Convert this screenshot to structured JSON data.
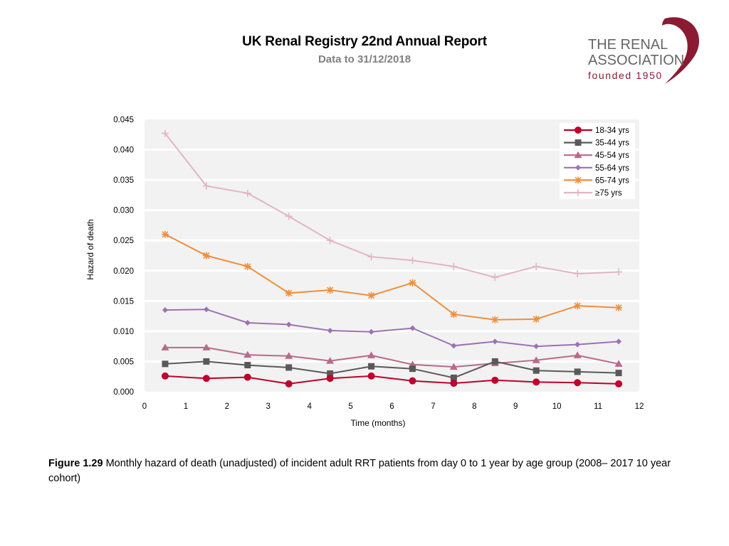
{
  "header": {
    "title": "UK Renal Registry 22nd Annual Report",
    "subtitle": "Data to 31/12/2018"
  },
  "logo": {
    "line1": "THE RENAL",
    "line2": "ASSOCIATION",
    "line3": "founded 1950",
    "brand_color": "#8b1a33"
  },
  "caption": {
    "figure_label": "Figure 1.29",
    "text": " Monthly hazard of death (unadjusted) of incident adult RRT patients from day 0 to 1 year by age group (2008– 2017 10 year cohort)"
  },
  "chart_data": {
    "type": "line",
    "title": "",
    "xlabel": "Time (months)",
    "ylabel": "Hazard of death",
    "xlim": [
      0,
      12
    ],
    "ylim": [
      0,
      0.045
    ],
    "xticks": [
      "0",
      "1",
      "2",
      "3",
      "4",
      "5",
      "6",
      "7",
      "8",
      "9",
      "10",
      "11",
      "12"
    ],
    "yticks": [
      "0.000",
      "0.005",
      "0.010",
      "0.015",
      "0.020",
      "0.025",
      "0.030",
      "0.035",
      "0.040",
      "0.045"
    ],
    "grid": "horizontal",
    "legend_position": "top-right",
    "x": [
      0.5,
      1.5,
      2.5,
      3.5,
      4.5,
      5.5,
      6.5,
      7.5,
      8.5,
      9.5,
      10.5,
      11.5
    ],
    "series": [
      {
        "name": "18-34 yrs",
        "color": "#c0002c",
        "marker": "circle",
        "values": [
          0.0026,
          0.0022,
          0.0024,
          0.0013,
          0.0022,
          0.0026,
          0.0018,
          0.0014,
          0.0019,
          0.0016,
          0.0015,
          0.0013
        ]
      },
      {
        "name": "35-44 yrs",
        "color": "#595959",
        "marker": "square",
        "values": [
          0.0046,
          0.005,
          0.0044,
          0.004,
          0.003,
          0.0042,
          0.0038,
          0.0023,
          0.005,
          0.0035,
          0.0033,
          0.0031
        ]
      },
      {
        "name": "45-54 yrs",
        "color": "#b86a8a",
        "marker": "triangle",
        "values": [
          0.0073,
          0.0073,
          0.0061,
          0.0059,
          0.0051,
          0.006,
          0.0045,
          0.0041,
          0.0047,
          0.0052,
          0.006,
          0.0046
        ]
      },
      {
        "name": "55-64 yrs",
        "color": "#9d71b4",
        "marker": "diamond",
        "values": [
          0.0135,
          0.0136,
          0.0114,
          0.0111,
          0.0101,
          0.0099,
          0.0105,
          0.0076,
          0.0083,
          0.0075,
          0.0078,
          0.0083
        ]
      },
      {
        "name": "65-74 yrs",
        "color": "#ee8f3c",
        "marker": "asterisk",
        "values": [
          0.026,
          0.0225,
          0.0207,
          0.0163,
          0.0168,
          0.0159,
          0.018,
          0.0128,
          0.0119,
          0.012,
          0.0142,
          0.0139
        ]
      },
      {
        "name": "≥75 yrs",
        "color": "#e4b3c6",
        "marker": "plus",
        "values": [
          0.0427,
          0.034,
          0.0328,
          0.029,
          0.025,
          0.0223,
          0.0217,
          0.0207,
          0.0189,
          0.0207,
          0.0195,
          0.0198
        ]
      }
    ]
  }
}
